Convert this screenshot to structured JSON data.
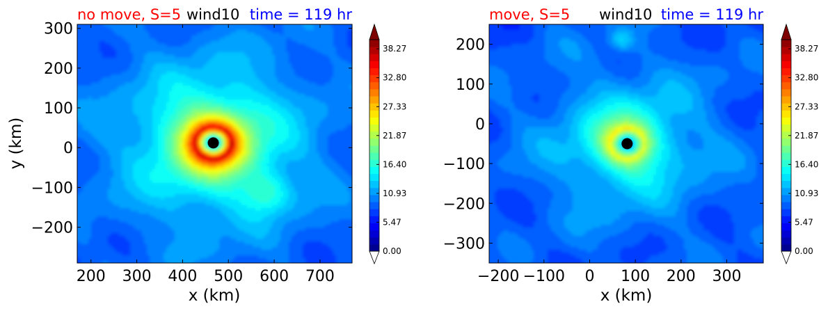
{
  "chart_data": [
    {
      "type": "heatmap",
      "title": {
        "left": "no move, S=5",
        "center": "wind10",
        "right": "time = 119 hr"
      },
      "title_colors": {
        "left": "#ff0000",
        "center": "#000000",
        "right": "#0000ff"
      },
      "xlabel": "x (km)",
      "ylabel": "y (km)",
      "xlim": [
        170,
        770
      ],
      "ylim": [
        -290,
        310
      ],
      "xticks": [
        "200",
        "300",
        "400",
        "500",
        "600",
        "700"
      ],
      "xtick_values": [
        200,
        300,
        400,
        500,
        600,
        700
      ],
      "yticks": [
        "−200",
        "−100",
        "0",
        "100",
        "200",
        "300"
      ],
      "ytick_values": [
        -200,
        -100,
        0,
        100,
        200,
        300
      ],
      "center_marker": {
        "x": 467,
        "y": 12
      },
      "secondary_peak": {
        "x": 585,
        "y": -115,
        "value": 12
      },
      "peak_value": 37,
      "background_value": 7,
      "colorbar": {
        "min": 0.0,
        "max": 40.0,
        "tick_labels": [
          "0.00",
          "5.47",
          "10.93",
          "16.40",
          "21.87",
          "27.33",
          "32.80",
          "38.27"
        ],
        "tick_values": [
          0.0,
          5.47,
          10.93,
          16.4,
          21.87,
          27.33,
          32.8,
          38.27
        ],
        "colormap": "jet",
        "extend": "both"
      }
    },
    {
      "type": "heatmap",
      "title": {
        "left": "move, S=5",
        "center": "wind10",
        "right": "time = 119 hr"
      },
      "title_colors": {
        "left": "#ff0000",
        "center": "#000000",
        "right": "#0000ff"
      },
      "xlabel": "x (km)",
      "ylabel": "",
      "xlim": [
        -220,
        380
      ],
      "ylim": [
        -350,
        250
      ],
      "xticks": [
        "−200",
        "−100",
        "0",
        "100",
        "200",
        "300"
      ],
      "xtick_values": [
        -200,
        -100,
        0,
        100,
        200,
        300
      ],
      "yticks": [
        "−300",
        "−200",
        "−100",
        "0",
        "100",
        "200"
      ],
      "ytick_values": [
        -300,
        -200,
        -100,
        0,
        100,
        200
      ],
      "center_marker": {
        "x": 82,
        "y": -50
      },
      "secondary_peak": {
        "x": 70,
        "y": 210,
        "value": 11
      },
      "peak_value": 25,
      "background_value": 7,
      "colorbar": {
        "min": 0.0,
        "max": 40.0,
        "tick_labels": [
          "0.00",
          "5.47",
          "10.93",
          "16.40",
          "21.87",
          "27.33",
          "32.80",
          "38.27"
        ],
        "tick_values": [
          0.0,
          5.47,
          10.93,
          16.4,
          21.87,
          27.33,
          32.8,
          38.27
        ],
        "colormap": "jet",
        "extend": "both"
      }
    }
  ]
}
